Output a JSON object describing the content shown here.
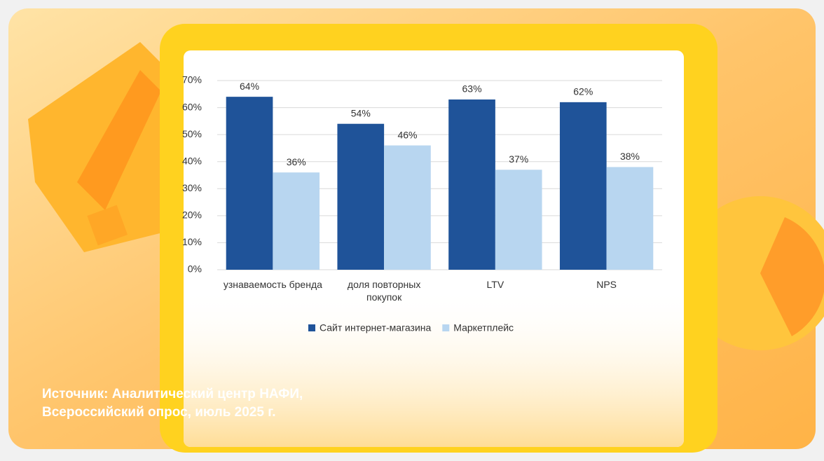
{
  "chart_data": {
    "type": "bar",
    "categories": [
      "узнаваемость бренда",
      "доля повторных покупок",
      "LTV",
      "NPS"
    ],
    "series": [
      {
        "name": "Сайт интернет-магазина",
        "color": "#1f5399",
        "values": [
          64,
          54,
          63,
          62
        ],
        "value_labels": [
          "64%",
          "54%",
          "63%",
          "62%"
        ]
      },
      {
        "name": "Маркетплейс",
        "color": "#b8d6f0",
        "values": [
          36,
          46,
          37,
          38
        ],
        "value_labels": [
          "36%",
          "46%",
          "37%",
          "38%"
        ]
      }
    ],
    "ylim": [
      0,
      70
    ],
    "yticks": [
      {
        "value": 0,
        "label": "0%"
      },
      {
        "value": 10,
        "label": "10%"
      },
      {
        "value": 20,
        "label": "20%"
      },
      {
        "value": 30,
        "label": "30%"
      },
      {
        "value": 40,
        "label": "40%"
      },
      {
        "value": 50,
        "label": "50%"
      },
      {
        "value": 60,
        "label": "60%"
      },
      {
        "value": 70,
        "label": "70%"
      }
    ],
    "grid": true,
    "legend": "bottom"
  },
  "source": {
    "lines": [
      "Источник: Аналитический центр НАФИ,",
      "Всероссийский опрос, июль 2025 г."
    ]
  }
}
